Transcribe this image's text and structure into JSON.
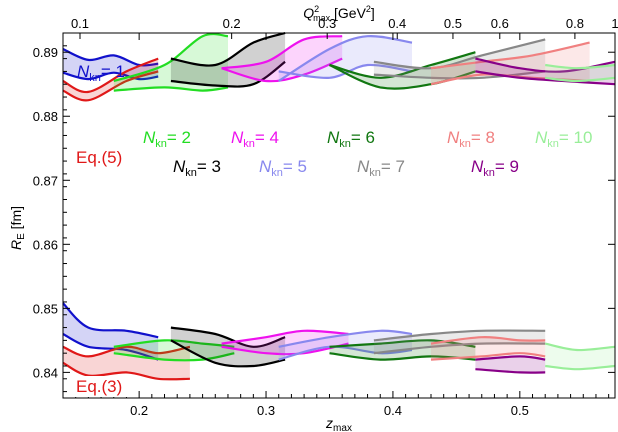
{
  "chart_data": {
    "type": "line",
    "xlabel": "z",
    "xlabel_sub": "max",
    "ylabel": "R",
    "ylabel_sub": "E",
    "ylabel_unit": " [fm]",
    "top_label": "Q",
    "top_label_sup": "2",
    "top_label_sub": "max",
    "top_label_unit": " [GeV",
    "top_label_unit_sup": "2",
    "top_label_unit_end": "]",
    "xlim": [
      0.14,
      0.575
    ],
    "ylim": [
      0.836,
      0.893
    ],
    "x_ticks": [
      "0.2",
      "0.3",
      "0.4",
      "0.5"
    ],
    "x_tick_values": [
      0.2,
      0.3,
      0.4,
      0.5
    ],
    "y_ticks": [
      "0.84",
      "0.85",
      "0.86",
      "0.87",
      "0.88",
      "0.89"
    ],
    "y_tick_values": [
      0.84,
      0.85,
      0.86,
      0.87,
      0.88,
      0.89
    ],
    "top_ticks": [
      "0.1",
      "0.2",
      "0.3",
      "0.4",
      "0.5",
      "0.6",
      "0.8",
      "1"
    ],
    "top_tick_z": [
      0.1534,
      0.2729,
      0.3482,
      0.4034,
      0.4473,
      0.4842,
      0.5434,
      0.5906
    ],
    "grid": false,
    "annotations": [
      {
        "key": "kn1",
        "text": "N",
        "sub": "kn",
        "rest": "= 1",
        "color": "#1111cc"
      },
      {
        "key": "eq5",
        "text": "Eq.(5)",
        "color": "#e01818"
      },
      {
        "key": "kn2",
        "text": "N",
        "sub": "kn",
        "rest": "= 2",
        "color": "#22dd22"
      },
      {
        "key": "kn3",
        "text": "N",
        "sub": "kn",
        "rest": "= 3",
        "color": "#000000"
      },
      {
        "key": "kn4",
        "text": "N",
        "sub": "kn",
        "rest": "= 4",
        "color": "#ee11ee"
      },
      {
        "key": "kn5",
        "text": "N",
        "sub": "kn",
        "rest": "= 5",
        "color": "#8888ee"
      },
      {
        "key": "kn6",
        "text": "N",
        "sub": "kn",
        "rest": "= 6",
        "color": "#117711"
      },
      {
        "key": "kn7",
        "text": "N",
        "sub": "kn",
        "rest": "= 7",
        "color": "#888888"
      },
      {
        "key": "kn8",
        "text": "N",
        "sub": "kn",
        "rest": "= 8",
        "color": "#f08080"
      },
      {
        "key": "kn9",
        "text": "N",
        "sub": "kn",
        "rest": "= 9",
        "color": "#880088"
      },
      {
        "key": "kn10",
        "text": "N",
        "sub": "kn",
        "rest": "= 10",
        "color": "#99ee99"
      },
      {
        "key": "eq3",
        "text": "Eq.(3)",
        "color": "#e01818"
      }
    ],
    "series": [
      {
        "color": "#1111cc",
        "upper": {
          "x": [
            0.14,
            0.16,
            0.18,
            0.2,
            0.215
          ],
          "y": [
            0.8905,
            0.8888,
            0.8895,
            0.888,
            0.8882
          ]
        },
        "lower": {
          "x": [
            0.14,
            0.16,
            0.18,
            0.2,
            0.215
          ],
          "y": [
            0.8868,
            0.8858,
            0.8868,
            0.8858,
            0.8862
          ]
        }
      },
      {
        "color": "#e01818",
        "upper": {
          "x": [
            0.14,
            0.16,
            0.19,
            0.215
          ],
          "y": [
            0.8855,
            0.8838,
            0.887,
            0.889
          ]
        },
        "lower": {
          "x": [
            0.14,
            0.16,
            0.19,
            0.215
          ],
          "y": [
            0.884,
            0.8825,
            0.8855,
            0.887
          ]
        }
      },
      {
        "color": "#22dd22",
        "upper": {
          "x": [
            0.18,
            0.22,
            0.25,
            0.27
          ],
          "y": [
            0.8855,
            0.888,
            0.8925,
            0.8925
          ]
        },
        "lower": {
          "x": [
            0.18,
            0.22,
            0.25,
            0.27
          ],
          "y": [
            0.884,
            0.8845,
            0.884,
            0.8845
          ]
        }
      },
      {
        "color": "#000000",
        "upper": {
          "x": [
            0.225,
            0.26,
            0.29,
            0.315
          ],
          "y": [
            0.889,
            0.888,
            0.8915,
            0.893
          ]
        },
        "lower": {
          "x": [
            0.225,
            0.26,
            0.29,
            0.315
          ],
          "y": [
            0.8855,
            0.8848,
            0.885,
            0.8885
          ]
        }
      },
      {
        "color": "#ee11ee",
        "upper": {
          "x": [
            0.265,
            0.3,
            0.33,
            0.36
          ],
          "y": [
            0.8875,
            0.8885,
            0.892,
            0.8925
          ]
        },
        "lower": {
          "x": [
            0.265,
            0.3,
            0.33,
            0.36
          ],
          "y": [
            0.8875,
            0.8855,
            0.8865,
            0.889
          ]
        }
      },
      {
        "color": "#8888ee",
        "upper": {
          "x": [
            0.31,
            0.35,
            0.38,
            0.415
          ],
          "y": [
            0.8855,
            0.8905,
            0.8925,
            0.8915
          ]
        },
        "lower": {
          "x": [
            0.31,
            0.35,
            0.38,
            0.415
          ],
          "y": [
            0.887,
            0.886,
            0.888,
            0.887
          ]
        }
      },
      {
        "color": "#117711",
        "upper": {
          "x": [
            0.35,
            0.39,
            0.43,
            0.465
          ],
          "y": [
            0.888,
            0.886,
            0.888,
            0.89
          ]
        },
        "lower": {
          "x": [
            0.35,
            0.39,
            0.43,
            0.465
          ],
          "y": [
            0.888,
            0.8845,
            0.885,
            0.887
          ]
        }
      },
      {
        "color": "#888888",
        "upper": {
          "x": [
            0.385,
            0.43,
            0.47,
            0.52
          ],
          "y": [
            0.8885,
            0.8875,
            0.8895,
            0.892
          ]
        },
        "lower": {
          "x": [
            0.385,
            0.43,
            0.47,
            0.52
          ],
          "y": [
            0.8865,
            0.886,
            0.886,
            0.887
          ]
        }
      },
      {
        "color": "#f08080",
        "upper": {
          "x": [
            0.43,
            0.47,
            0.51,
            0.555
          ],
          "y": [
            0.8875,
            0.8885,
            0.8895,
            0.8915
          ]
        },
        "lower": {
          "x": [
            0.43,
            0.47,
            0.51,
            0.555
          ],
          "y": [
            0.885,
            0.8865,
            0.886,
            0.8855
          ]
        }
      },
      {
        "color": "#880088",
        "upper": {
          "x": [
            0.465,
            0.5,
            0.535,
            0.575
          ],
          "y": [
            0.889,
            0.8875,
            0.887,
            0.8885
          ]
        },
        "lower": {
          "x": [
            0.465,
            0.5,
            0.535,
            0.575
          ],
          "y": [
            0.887,
            0.886,
            0.8855,
            0.885
          ]
        }
      },
      {
        "color": "#99ee99",
        "upper": {
          "x": [
            0.52,
            0.545,
            0.575
          ],
          "y": [
            0.888,
            0.8875,
            0.888
          ]
        },
        "lower": {
          "x": [
            0.52,
            0.545,
            0.575
          ],
          "y": [
            0.886,
            0.8855,
            0.886
          ]
        }
      },
      {
        "color": "#1111cc",
        "upper": {
          "x": [
            0.14,
            0.16,
            0.19,
            0.215
          ],
          "y": [
            0.8508,
            0.847,
            0.8465,
            0.8455
          ]
        },
        "lower": {
          "x": [
            0.14,
            0.16,
            0.19,
            0.215
          ],
          "y": [
            0.846,
            0.844,
            0.8435,
            0.842
          ]
        }
      },
      {
        "color": "#e01818",
        "upper": {
          "x": [
            0.14,
            0.16,
            0.19,
            0.215,
            0.24
          ],
          "y": [
            0.844,
            0.8425,
            0.844,
            0.843,
            0.844
          ]
        },
        "lower": {
          "x": [
            0.14,
            0.16,
            0.19,
            0.215,
            0.24
          ],
          "y": [
            0.8415,
            0.8395,
            0.84,
            0.839,
            0.839
          ]
        }
      },
      {
        "color": "#22dd22",
        "upper": {
          "x": [
            0.18,
            0.22,
            0.25,
            0.275
          ],
          "y": [
            0.844,
            0.845,
            0.8445,
            0.844
          ]
        },
        "lower": {
          "x": [
            0.18,
            0.22,
            0.25,
            0.275
          ],
          "y": [
            0.843,
            0.842,
            0.842,
            0.843
          ]
        }
      },
      {
        "color": "#000000",
        "upper": {
          "x": [
            0.225,
            0.26,
            0.29,
            0.315
          ],
          "y": [
            0.847,
            0.846,
            0.844,
            0.8455
          ]
        },
        "lower": {
          "x": [
            0.225,
            0.26,
            0.29,
            0.315
          ],
          "y": [
            0.845,
            0.8415,
            0.841,
            0.842
          ]
        }
      },
      {
        "color": "#ee11ee",
        "upper": {
          "x": [
            0.265,
            0.3,
            0.33,
            0.365
          ],
          "y": [
            0.8445,
            0.8455,
            0.8465,
            0.846
          ]
        },
        "lower": {
          "x": [
            0.265,
            0.3,
            0.33,
            0.365
          ],
          "y": [
            0.844,
            0.843,
            0.843,
            0.8445
          ]
        }
      },
      {
        "color": "#8888ee",
        "upper": {
          "x": [
            0.31,
            0.35,
            0.39,
            0.415
          ],
          "y": [
            0.844,
            0.8455,
            0.8465,
            0.846
          ]
        },
        "lower": {
          "x": [
            0.31,
            0.35,
            0.39,
            0.415
          ],
          "y": [
            0.842,
            0.844,
            0.843,
            0.8435
          ]
        }
      },
      {
        "color": "#117711",
        "upper": {
          "x": [
            0.35,
            0.39,
            0.43,
            0.465
          ],
          "y": [
            0.844,
            0.8445,
            0.845,
            0.844
          ]
        },
        "lower": {
          "x": [
            0.35,
            0.39,
            0.43,
            0.465
          ],
          "y": [
            0.843,
            0.842,
            0.8425,
            0.842
          ]
        }
      },
      {
        "color": "#888888",
        "upper": {
          "x": [
            0.385,
            0.43,
            0.47,
            0.52
          ],
          "y": [
            0.845,
            0.846,
            0.8465,
            0.8465
          ]
        },
        "lower": {
          "x": [
            0.385,
            0.43,
            0.47,
            0.52
          ],
          "y": [
            0.843,
            0.844,
            0.8445,
            0.8445
          ]
        }
      },
      {
        "color": "#f08080",
        "upper": {
          "x": [
            0.43,
            0.47,
            0.5,
            0.52
          ],
          "y": [
            0.8445,
            0.8455,
            0.845,
            0.845
          ]
        },
        "lower": {
          "x": [
            0.43,
            0.47,
            0.5,
            0.52
          ],
          "y": [
            0.842,
            0.8425,
            0.843,
            0.8425
          ]
        }
      },
      {
        "color": "#880088",
        "upper": {
          "x": [
            0.465,
            0.5,
            0.52
          ],
          "y": [
            0.842,
            0.8425,
            0.842
          ]
        },
        "lower": {
          "x": [
            0.465,
            0.5,
            0.52
          ],
          "y": [
            0.8405,
            0.84,
            0.84
          ]
        }
      },
      {
        "color": "#99ee99",
        "upper": {
          "x": [
            0.52,
            0.545,
            0.575
          ],
          "y": [
            0.8445,
            0.8435,
            0.844
          ]
        },
        "lower": {
          "x": [
            0.52,
            0.545,
            0.575
          ],
          "y": [
            0.841,
            0.8405,
            0.841
          ]
        }
      }
    ]
  }
}
